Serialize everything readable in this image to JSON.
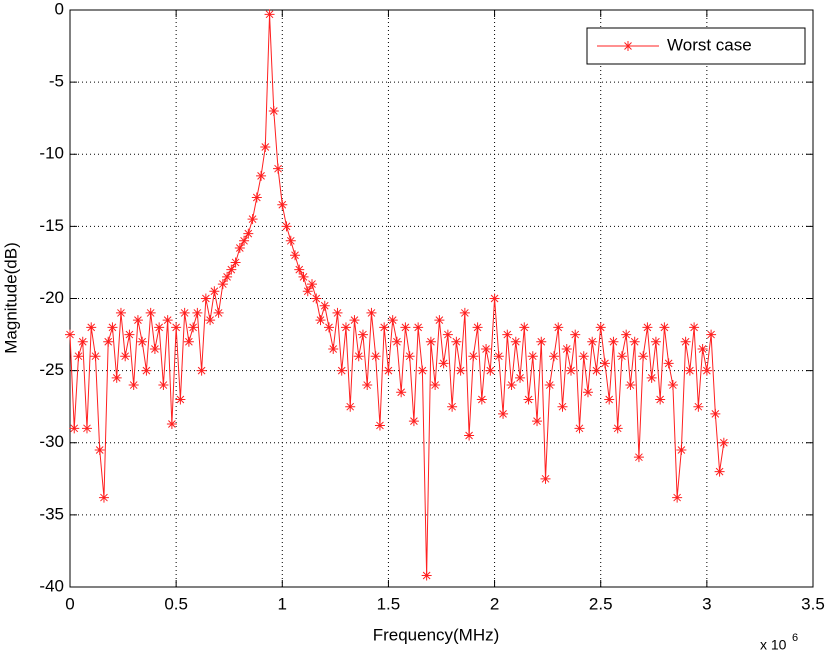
{
  "chart_data": {
    "type": "line",
    "xlabel": "Frequency(MHz)",
    "ylabel": "Magnitude(dB)",
    "x_scale_label": {
      "base": "x 10",
      "exponent": "6"
    },
    "x": [
      0,
      0.02,
      0.04,
      0.06,
      0.08,
      0.1,
      0.12,
      0.14,
      0.16,
      0.18,
      0.2,
      0.22,
      0.24,
      0.26,
      0.28,
      0.3,
      0.32,
      0.34,
      0.36,
      0.38,
      0.4,
      0.42,
      0.44,
      0.46,
      0.48,
      0.5,
      0.52,
      0.54,
      0.56,
      0.58,
      0.6,
      0.62,
      0.64,
      0.66,
      0.68,
      0.7,
      0.72,
      0.74,
      0.76,
      0.78,
      0.8,
      0.82,
      0.84,
      0.86,
      0.88,
      0.9,
      0.92,
      0.94,
      0.96,
      0.98,
      1.0,
      1.02,
      1.04,
      1.06,
      1.08,
      1.1,
      1.12,
      1.14,
      1.16,
      1.18,
      1.2,
      1.22,
      1.24,
      1.26,
      1.28,
      1.3,
      1.32,
      1.34,
      1.36,
      1.38,
      1.4,
      1.42,
      1.44,
      1.46,
      1.48,
      1.5,
      1.52,
      1.54,
      1.56,
      1.58,
      1.6,
      1.62,
      1.64,
      1.66,
      1.68,
      1.7,
      1.72,
      1.74,
      1.76,
      1.78,
      1.8,
      1.82,
      1.84,
      1.86,
      1.88,
      1.9,
      1.92,
      1.94,
      1.96,
      1.98,
      2.0,
      2.02,
      2.04,
      2.06,
      2.08,
      2.1,
      2.12,
      2.14,
      2.16,
      2.18,
      2.2,
      2.22,
      2.24,
      2.26,
      2.28,
      2.3,
      2.32,
      2.34,
      2.36,
      2.38,
      2.4,
      2.42,
      2.44,
      2.46,
      2.48,
      2.5,
      2.52,
      2.54,
      2.56,
      2.58,
      2.6,
      2.62,
      2.64,
      2.66,
      2.68,
      2.7,
      2.72,
      2.74,
      2.76,
      2.78,
      2.8,
      2.82,
      2.84,
      2.86,
      2.88,
      2.9,
      2.92,
      2.94,
      2.96,
      2.98,
      3.0,
      3.02,
      3.04,
      3.06,
      3.08
    ],
    "series": [
      {
        "name": "Worst case",
        "color": "#ff2020",
        "marker": "asterisk",
        "values": [
          -22.5,
          -29,
          -24,
          -23,
          -29,
          -22,
          -24,
          -30.5,
          -33.8,
          -23,
          -22,
          -25.5,
          -21,
          -24,
          -22.5,
          -26,
          -21.5,
          -23,
          -25,
          -21,
          -23.5,
          -22,
          -26,
          -21.5,
          -28.7,
          -22,
          -27,
          -21,
          -23,
          -22,
          -21,
          -25,
          -20,
          -21.5,
          -19.5,
          -21,
          -19,
          -18.5,
          -18,
          -17.5,
          -16.5,
          -16,
          -15.5,
          -14.5,
          -13,
          -11.5,
          -9.5,
          -0.3,
          -7,
          -11,
          -13.5,
          -15,
          -16,
          -17,
          -18,
          -18.5,
          -19.5,
          -19,
          -20,
          -21.5,
          -20.5,
          -22,
          -23.5,
          -21,
          -25,
          -22,
          -27.5,
          -21.5,
          -24,
          -22.5,
          -26,
          -21,
          -24,
          -28.8,
          -22,
          -25,
          -21.5,
          -23,
          -26.5,
          -22,
          -24,
          -28.5,
          -22,
          -25,
          -39.2,
          -23,
          -26,
          -21.5,
          -24.5,
          -22.5,
          -27.5,
          -23,
          -25,
          -21,
          -29.5,
          -24,
          -22,
          -27,
          -23.5,
          -25,
          -20,
          -24,
          -28,
          -22.5,
          -26,
          -23,
          -25.5,
          -22,
          -27,
          -24,
          -28.5,
          -23,
          -32.5,
          -26,
          -24,
          -22,
          -27.5,
          -23.5,
          -25,
          -22.5,
          -29,
          -24,
          -26.5,
          -23,
          -25,
          -22,
          -24.5,
          -27,
          -23,
          -29,
          -24,
          -22.5,
          -26,
          -23,
          -31,
          -24,
          -22,
          -25.5,
          -23,
          -27,
          -22,
          -24.5,
          -26,
          -33.8,
          -30.5,
          -23,
          -25,
          -22,
          -27.5,
          -23.5,
          -25,
          -22.5,
          -28,
          -32,
          -30
        ]
      }
    ],
    "xlim": [
      0,
      3.5
    ],
    "xticks": [
      0,
      0.5,
      1,
      1.5,
      2,
      2.5,
      3,
      3.5
    ],
    "ylim": [
      -40,
      0
    ],
    "yticks": [
      -40,
      -35,
      -30,
      -25,
      -20,
      -15,
      -10,
      -5,
      0
    ],
    "grid": true,
    "legend": "northeast"
  }
}
